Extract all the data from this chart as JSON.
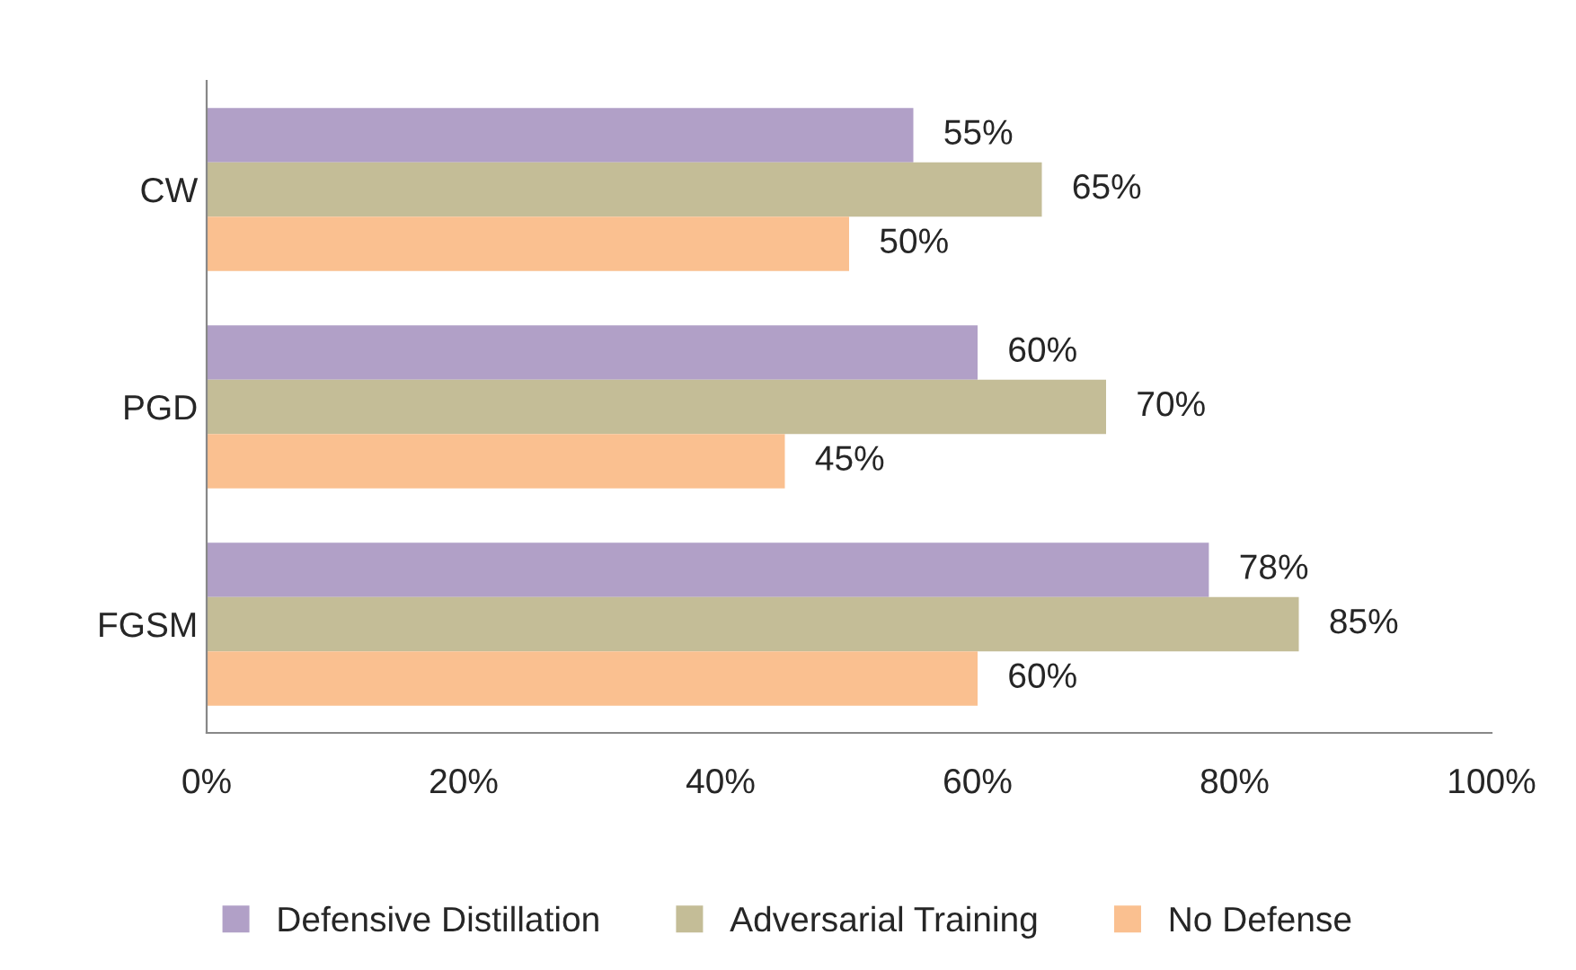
{
  "chart_data": {
    "type": "bar",
    "orientation": "horizontal",
    "categories": [
      "CW",
      "PGD",
      "FGSM"
    ],
    "series": [
      {
        "name": "Defensive Distillation",
        "color": "#b1a0c7",
        "values": [
          55,
          60,
          78
        ],
        "value_labels": [
          "55%",
          "60%",
          "78%"
        ]
      },
      {
        "name": "Adversarial Training",
        "color": "#c4bd97",
        "values": [
          65,
          70,
          85
        ],
        "value_labels": [
          "65%",
          "70%",
          "85%"
        ]
      },
      {
        "name": "No Defense",
        "color": "#fac090",
        "values": [
          50,
          45,
          60
        ],
        "value_labels": [
          "50%",
          "45%",
          "60%"
        ]
      }
    ],
    "xlim": [
      0,
      100
    ],
    "xticks": [
      {
        "value": 0,
        "label": "0%"
      },
      {
        "value": 20,
        "label": "20%"
      },
      {
        "value": 40,
        "label": "40%"
      },
      {
        "value": 60,
        "label": "60%"
      },
      {
        "value": 80,
        "label": "80%"
      },
      {
        "value": 100,
        "label": "100%"
      }
    ],
    "grid": false,
    "legend": "bottom"
  }
}
